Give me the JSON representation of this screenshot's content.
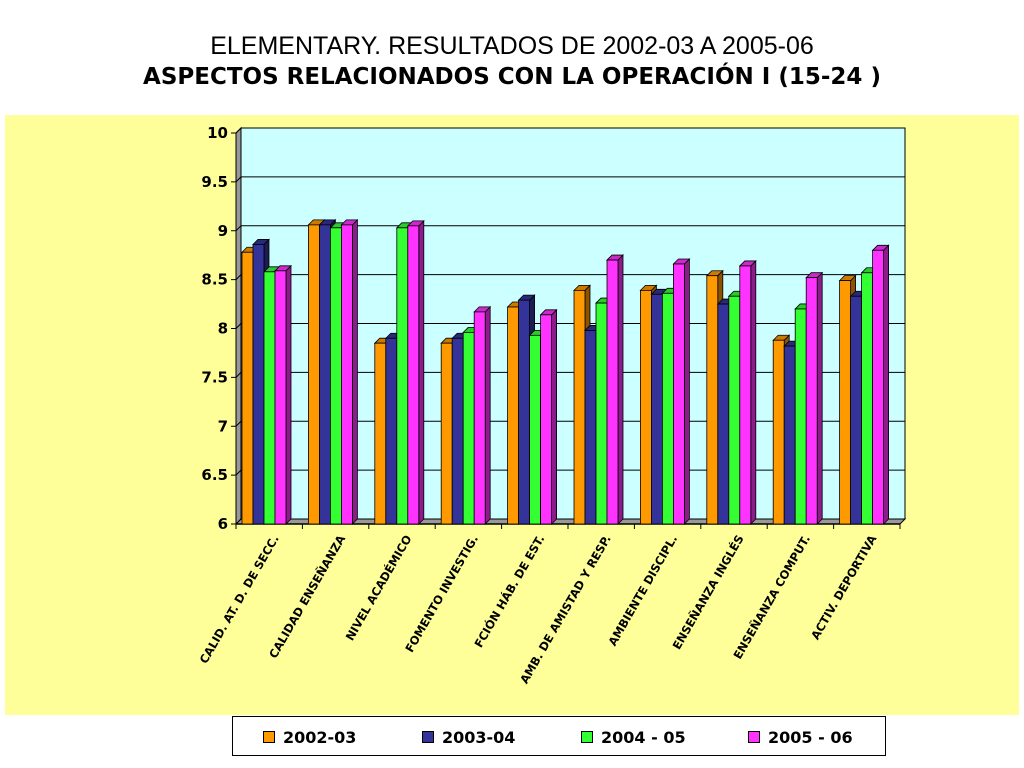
{
  "title": {
    "line1": "ELEMENTARY. RESULTADOS DE 2002-03  A  2005-06",
    "line2": "ASPECTOS RELACIONADOS CON LA OPERACIÓN  I (15-24 )"
  },
  "colors": {
    "background_band": "#ffff99",
    "plot_area": "#ccffff",
    "series": [
      "#ff9900",
      "#333399",
      "#33ff33",
      "#ff33ff"
    ]
  },
  "chart_data": {
    "type": "bar",
    "title": "ASPECTOS RELACIONADOS CON LA OPERACIÓN  I (15-24 )",
    "xlabel": "",
    "ylabel": "",
    "ylim": [
      6,
      10
    ],
    "yticks": [
      "6",
      "6.5",
      "7",
      "7.5",
      "8",
      "8.5",
      "9",
      "9.5",
      "10"
    ],
    "grid": true,
    "legend_position": "bottom",
    "categories": [
      "CALID. AT. D. DE SECC.",
      "CALIDAD ENSEÑANZA",
      "NIVEL ACADÉMICO",
      "FOMENTO INVESTIG.",
      "FCIÓN HÁB. DE EST.",
      "AMB. DE AMISTAD Y RESP.",
      "AMBIENTE DISCIPL.",
      "ENSEÑANZA INGLÉS",
      "ENSEÑANZA COMPUT.",
      "ACTIV. DEPORTIVA"
    ],
    "series": [
      {
        "name": "2002-03",
        "values": [
          8.78,
          9.06,
          7.85,
          7.85,
          8.22,
          8.39,
          8.39,
          8.54,
          7.88,
          8.49
        ]
      },
      {
        "name": "2003-04",
        "values": [
          8.86,
          9.06,
          7.9,
          7.9,
          8.29,
          7.98,
          8.35,
          8.25,
          7.82,
          8.33
        ]
      },
      {
        "name": "2004 - 05",
        "values": [
          8.58,
          9.03,
          9.03,
          7.96,
          7.93,
          8.26,
          8.36,
          8.33,
          8.2,
          8.57
        ]
      },
      {
        "name": "2005 - 06",
        "values": [
          8.59,
          9.06,
          9.05,
          8.17,
          8.14,
          8.7,
          8.66,
          8.64,
          8.52,
          8.8
        ]
      }
    ]
  }
}
